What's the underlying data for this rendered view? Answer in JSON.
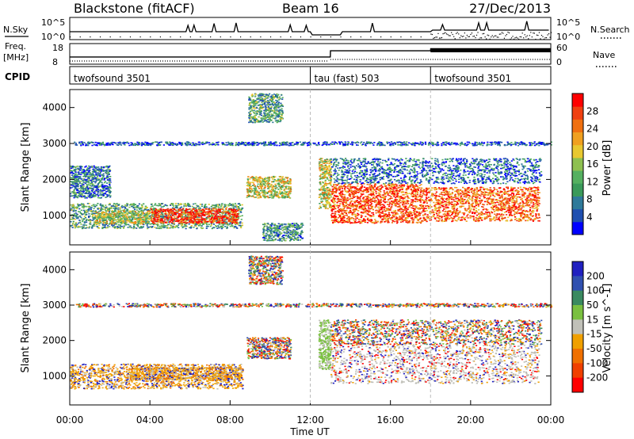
{
  "header": {
    "title": "Blackstone (fitACF)",
    "beam": "Beam 16",
    "date": "27/Dec/2013"
  },
  "top_panels": {
    "nsky": {
      "label": "N.Sky",
      "tick_top": "10^5",
      "tick_bottom": "10^0"
    },
    "nsearch": {
      "label": "N.Search",
      "tick_top": "10^5",
      "tick_bottom": "10^0"
    },
    "freq": {
      "label": "Freq.",
      "unit": "[MHz]",
      "tick_top": "18",
      "tick_bottom": "8"
    },
    "nave": {
      "label": "Nave",
      "tick_top": "60",
      "tick_bottom": "0"
    },
    "cpid": {
      "label": "CPID"
    }
  },
  "chart_data": [
    {
      "type": "table",
      "name": "cpid",
      "rows": [
        {
          "label": "twofsound 3501",
          "start_hour": 0,
          "end_hour": 12
        },
        {
          "label": "tau (fast) 503",
          "start_hour": 12,
          "end_hour": 18
        },
        {
          "label": "twofsound 3501",
          "start_hour": 18,
          "end_hour": 24
        }
      ]
    },
    {
      "type": "line",
      "name": "frequency",
      "x": [
        0,
        13,
        13.01,
        18,
        18.01,
        24
      ],
      "y": [
        11.5,
        11.5,
        14.5,
        14.5,
        15.5,
        15.5
      ],
      "ylim": [
        8,
        18
      ],
      "xlim": [
        0,
        24
      ]
    },
    {
      "type": "heatmap",
      "name": "power",
      "xlabel": "",
      "ylabel": "Slant Range [km]",
      "xlim": [
        0,
        24
      ],
      "ylim": [
        180,
        4500
      ],
      "yticks": [
        "1000",
        "2000",
        "3000",
        "4000"
      ],
      "colorbar": {
        "label": "Power [dB]",
        "ticks": [
          "4",
          "8",
          "12",
          "16",
          "20",
          "24",
          "28"
        ],
        "colors": [
          "#0000ff",
          "#1f4fb0",
          "#2f7a9a",
          "#3a9a5a",
          "#55b060",
          "#8ec050",
          "#e8c830",
          "#f0a020",
          "#f07010",
          "#f04010",
          "#ff0000"
        ]
      },
      "regions": [
        {
          "x0": 0.0,
          "x1": 8.6,
          "y0": 650,
          "y1": 1350,
          "level": 0.35
        },
        {
          "x0": 4.0,
          "x1": 8.4,
          "y0": 800,
          "y1": 1200,
          "level": 0.9
        },
        {
          "x0": 1.2,
          "x1": 4.0,
          "y0": 780,
          "y1": 1150,
          "level": 0.55
        },
        {
          "x0": 8.8,
          "x1": 11.0,
          "y0": 1500,
          "y1": 2100,
          "level": 0.55
        },
        {
          "x0": 8.9,
          "x1": 10.6,
          "y0": 3600,
          "y1": 4400,
          "level": 0.35
        },
        {
          "x0": 9.6,
          "x1": 11.6,
          "y0": 300,
          "y1": 800,
          "level": 0.3
        },
        {
          "x0": 12.4,
          "x1": 13.0,
          "y0": 1200,
          "y1": 2600,
          "level": 0.55
        },
        {
          "x0": 13.0,
          "x1": 17.5,
          "y0": 800,
          "y1": 1900,
          "level": 0.85
        },
        {
          "x0": 17.5,
          "x1": 23.4,
          "y0": 850,
          "y1": 1800,
          "level": 0.8
        },
        {
          "x0": 13.0,
          "x1": 23.5,
          "y0": 1900,
          "y1": 2600,
          "level": 0.2
        },
        {
          "x0": 0.0,
          "x1": 2.0,
          "y0": 1500,
          "y1": 2400,
          "level": 0.25
        },
        {
          "x0": 0.2,
          "x1": 24.0,
          "y0": 2960,
          "y1": 3060,
          "level": 0.15
        }
      ]
    },
    {
      "type": "heatmap",
      "name": "velocity",
      "xlabel": "Time UT",
      "ylabel": "Slant Range [km]",
      "xlim": [
        0,
        24
      ],
      "ylim": [
        180,
        4500
      ],
      "xticks": [
        "00:00",
        "04:00",
        "08:00",
        "12:00",
        "16:00",
        "20:00",
        "00:00"
      ],
      "yticks": [
        "1000",
        "2000",
        "3000",
        "4000"
      ],
      "colorbar": {
        "label": "Velocity [m s^-1]",
        "ticks": [
          "200",
          "100",
          "50",
          "15",
          "-15",
          "-50",
          "-100",
          "-200"
        ],
        "colors": [
          "#2020c0",
          "#3050b0",
          "#3a8a60",
          "#7ac040",
          "#c0c0b8",
          "#f0a000",
          "#f07000",
          "#f04000",
          "#ff0000"
        ]
      },
      "regions": [
        {
          "x0": 0.0,
          "x1": 8.6,
          "y0": 650,
          "y1": 1350,
          "level": "orange"
        },
        {
          "x0": 3.0,
          "x1": 8.6,
          "y0": 900,
          "y1": 1250,
          "level": "orange"
        },
        {
          "x0": 8.8,
          "x1": 11.0,
          "y0": 1500,
          "y1": 2100,
          "level": "mixed"
        },
        {
          "x0": 8.9,
          "x1": 10.6,
          "y0": 3600,
          "y1": 4400,
          "level": "mixed"
        },
        {
          "x0": 12.4,
          "x1": 13.0,
          "y0": 1200,
          "y1": 2600,
          "level": "green"
        },
        {
          "x0": 13.0,
          "x1": 23.4,
          "y0": 800,
          "y1": 1900,
          "level": "grey"
        },
        {
          "x0": 13.0,
          "x1": 23.5,
          "y0": 1900,
          "y1": 2600,
          "level": "mixed"
        },
        {
          "x0": 0.2,
          "x1": 24.0,
          "y0": 2960,
          "y1": 3060,
          "level": "mixed"
        }
      ]
    }
  ]
}
